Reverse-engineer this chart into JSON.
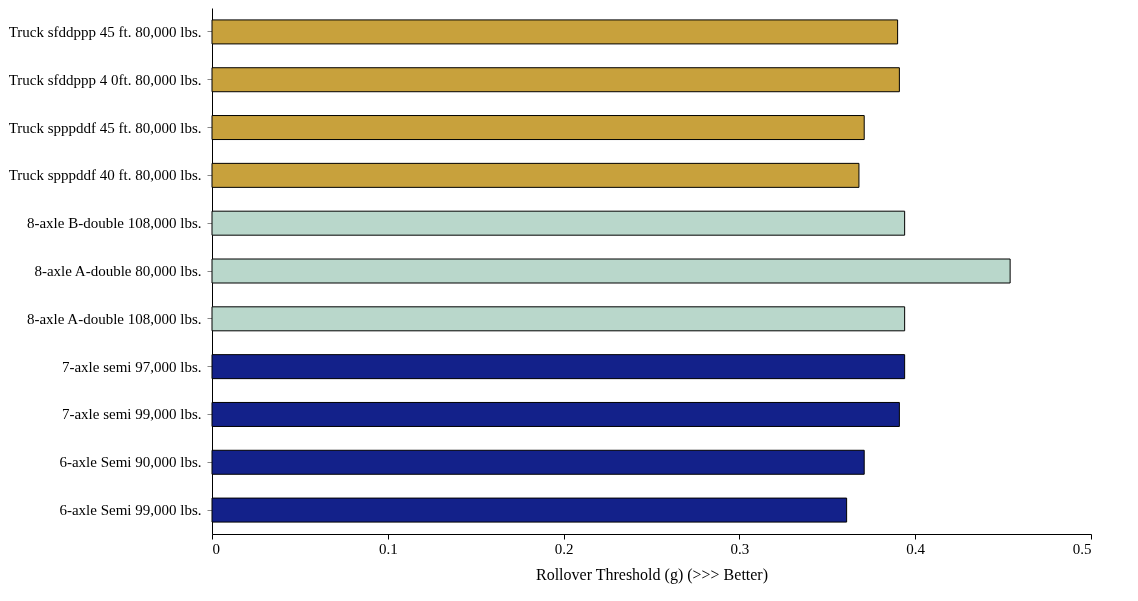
{
  "chart_data": {
    "type": "bar",
    "orientation": "horizontal",
    "xlabel": "Rollover Threshold (g)   (>>> Better)",
    "categories": [
      "Truck sfddppp 45 ft. 80,000 lbs.",
      "Truck sfddppp 4 0ft. 80,000 lbs.",
      "Truck spppddf 45 ft. 80,000 lbs.",
      "Truck spppddf 40 ft. 80,000 lbs.",
      "8-axle B-double 108,000 lbs.",
      "8-axle A-double 80,000 lbs.",
      "8-axle A-double 108,000 lbs.",
      "7-axle semi 97,000 lbs.",
      "7-axle semi 99,000 lbs.",
      "6-axle Semi 90,000 lbs.",
      "6-axle Semi 99,000 lbs."
    ],
    "values": [
      0.39,
      0.391,
      0.371,
      0.368,
      0.394,
      0.454,
      0.394,
      0.394,
      0.391,
      0.371,
      0.361
    ],
    "colors": [
      "#c8a13c",
      "#c8a13c",
      "#c8a13c",
      "#c8a13c",
      "#b9d7cb",
      "#b9d7cb",
      "#b9d7cb",
      "#13218a",
      "#13218a",
      "#13218a",
      "#13218a"
    ],
    "xlim": [
      0,
      0.5
    ],
    "xticks": [
      0,
      0.1,
      0.2,
      0.3,
      0.4,
      0.5
    ],
    "grid": false
  }
}
